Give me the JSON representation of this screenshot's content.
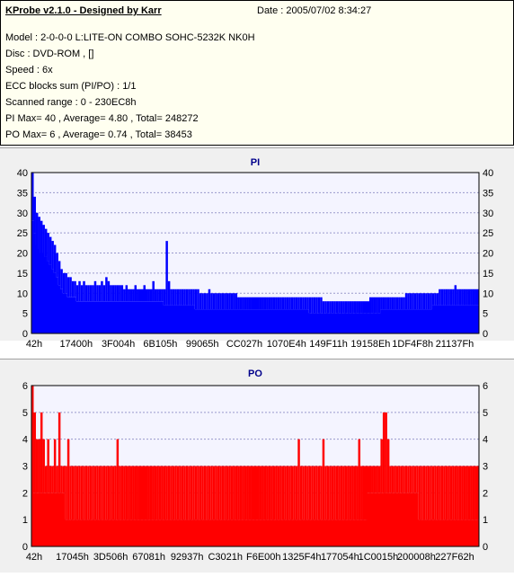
{
  "info": {
    "title": "KProbe v2.1.0 - Designed by Karr",
    "date": "Date : 2005/07/02 8:34:27",
    "model": "Model : 2-0-0-0 L:LITE-ON COMBO SOHC-5232K NK0H",
    "disc": "Disc : DVD-ROM ,  []",
    "speed": "Speed : 6x",
    "ecc": "ECC blocks sum (PI/PO) : 1/1",
    "range": "Scanned range : 0 - 230EC8h",
    "pi_stats": "PI Max= 40 , Average= 4.80 , Total= 248272",
    "po_stats": "PO Max= 6 , Average= 0.74 , Total= 38453"
  },
  "colors": {
    "pi": "#0000ff",
    "po": "#ff0000",
    "plot_bg": "#f4f4ff",
    "grid": "#9999cc",
    "title": "#00008b"
  },
  "chart_data": [
    {
      "type": "area",
      "title": "PI",
      "ylim": [
        0,
        40
      ],
      "yticks": [
        0,
        5,
        10,
        15,
        20,
        25,
        30,
        35,
        40
      ],
      "xticks": [
        "42h",
        "17400h",
        "3F004h",
        "6B105h",
        "99065h",
        "CC027h",
        "1070E4h",
        "149F11h",
        "19158Eh",
        "1DF4F8h",
        "21137Fh"
      ],
      "xlim": [
        0,
        1
      ],
      "grid": true,
      "series": [
        {
          "values": [
            40,
            34,
            30,
            29,
            28,
            27,
            26,
            25,
            24,
            23,
            22,
            20,
            18,
            16,
            15,
            15,
            14,
            14,
            13,
            13,
            12,
            13,
            12,
            13,
            12,
            12,
            12,
            12,
            13,
            12,
            12,
            13,
            12,
            14,
            13,
            12,
            12,
            12,
            12,
            12,
            12,
            11,
            12,
            11,
            11,
            11,
            12,
            11,
            11,
            11,
            12,
            11,
            11,
            11,
            13,
            11,
            11,
            11,
            11,
            11,
            23,
            13,
            11,
            11,
            11,
            11,
            11,
            11,
            11,
            11,
            11,
            11,
            11,
            11,
            11,
            10,
            10,
            10,
            10,
            11,
            10,
            10,
            10,
            10,
            10,
            10,
            10,
            10,
            10,
            10,
            10,
            10,
            9,
            9,
            9,
            9,
            9,
            9,
            9,
            9,
            9,
            9,
            9,
            9,
            9,
            9,
            9,
            9,
            9,
            9,
            9,
            9,
            9,
            9,
            9,
            9,
            9,
            9,
            9,
            9,
            9,
            9,
            9,
            9,
            9,
            9,
            9,
            9,
            9,
            9,
            8,
            8,
            8,
            8,
            8,
            8,
            8,
            8,
            8,
            8,
            8,
            8,
            8,
            8,
            8,
            8,
            8,
            8,
            8,
            8,
            8,
            9,
            9,
            9,
            9,
            9,
            9,
            9,
            9,
            9,
            9,
            9,
            9,
            9,
            9,
            9,
            9,
            10,
            10,
            10,
            10,
            10,
            10,
            10,
            10,
            10,
            10,
            10,
            10,
            10,
            10,
            10,
            11,
            11,
            11,
            11,
            11,
            11,
            11,
            12,
            11,
            11,
            11,
            11,
            11,
            11,
            11,
            11,
            11,
            11
          ],
          "baseline": [
            28,
            25,
            22,
            21,
            20,
            20,
            19,
            18,
            17,
            16,
            15,
            14,
            12,
            11,
            10,
            10,
            9,
            9,
            9,
            9,
            8,
            8,
            8,
            8,
            8,
            8,
            8,
            8,
            8,
            8,
            8,
            8,
            8,
            8,
            8,
            8,
            8,
            8,
            8,
            8,
            8,
            8,
            8,
            8,
            8,
            8,
            8,
            8,
            8,
            8,
            8,
            8,
            8,
            8,
            8,
            8,
            8,
            8,
            8,
            7,
            7,
            7,
            7,
            7,
            7,
            7,
            7,
            7,
            7,
            7,
            7,
            7,
            7,
            6,
            6,
            6,
            6,
            6,
            6,
            6,
            6,
            6,
            6,
            6,
            6,
            6,
            6,
            6,
            6,
            6,
            6,
            6,
            6,
            6,
            6,
            6,
            6,
            6,
            6,
            6,
            6,
            6,
            6,
            6,
            6,
            6,
            6,
            6,
            6,
            6,
            6,
            6,
            6,
            6,
            6,
            6,
            6,
            6,
            6,
            6,
            6,
            6,
            6,
            6,
            5,
            5,
            5,
            5,
            5,
            5,
            5,
            5,
            5,
            5,
            5,
            5,
            5,
            5,
            5,
            5,
            5,
            5,
            5,
            5,
            5,
            5,
            5,
            5,
            5,
            5,
            5,
            5,
            5,
            5,
            5,
            5,
            6,
            6,
            6,
            6,
            6,
            6,
            6,
            6,
            6,
            6,
            6,
            6,
            6,
            6,
            6,
            6,
            6,
            6,
            6,
            6,
            6,
            6,
            6,
            7,
            7,
            7,
            7,
            7,
            7,
            7,
            7,
            7,
            7,
            7,
            7,
            7,
            7,
            7,
            7,
            7,
            7,
            7,
            7,
            7
          ]
        }
      ]
    },
    {
      "type": "area",
      "title": "PO",
      "ylim": [
        0,
        6
      ],
      "yticks": [
        0,
        1,
        2,
        3,
        4,
        5,
        6
      ],
      "xticks": [
        "42h",
        "17045h",
        "3D506h",
        "67081h",
        "92937h",
        "C3021h",
        "F6E00h",
        "1325F4h",
        "177054h",
        "1C0015h",
        "200008h",
        "227F62h"
      ],
      "xlim": [
        0,
        1
      ],
      "grid": true,
      "series": [
        {
          "values": [
            6,
            5,
            4,
            4,
            5,
            4,
            3,
            4,
            3,
            3,
            4,
            3,
            5,
            3,
            3,
            3,
            4,
            3,
            3,
            3,
            3,
            3,
            3,
            3,
            3,
            3,
            3,
            3,
            3,
            3,
            3,
            3,
            3,
            3,
            3,
            3,
            3,
            3,
            4,
            3,
            3,
            3,
            3,
            3,
            3,
            3,
            3,
            3,
            3,
            3,
            3,
            3,
            3,
            3,
            3,
            3,
            3,
            3,
            3,
            3,
            3,
            3,
            3,
            3,
            3,
            3,
            3,
            3,
            3,
            3,
            3,
            3,
            3,
            3,
            3,
            3,
            3,
            3,
            3,
            3,
            3,
            3,
            3,
            3,
            3,
            3,
            3,
            3,
            3,
            3,
            3,
            3,
            3,
            3,
            3,
            3,
            3,
            3,
            3,
            3,
            3,
            3,
            3,
            3,
            3,
            3,
            3,
            3,
            3,
            3,
            3,
            3,
            3,
            3,
            3,
            3,
            3,
            3,
            3,
            4,
            3,
            3,
            3,
            3,
            3,
            3,
            3,
            3,
            3,
            3,
            4,
            3,
            3,
            3,
            3,
            3,
            3,
            3,
            3,
            3,
            3,
            3,
            3,
            3,
            3,
            3,
            4,
            3,
            3,
            3,
            3,
            3,
            3,
            3,
            3,
            3,
            4,
            5,
            5,
            4,
            3,
            3,
            3,
            3,
            3,
            3,
            3,
            3,
            3,
            3,
            3,
            3,
            3,
            3,
            3,
            3,
            3,
            3,
            3,
            3,
            3,
            3,
            3,
            3,
            3,
            3,
            3,
            3,
            3,
            3,
            3,
            3,
            3,
            3,
            3,
            3,
            3,
            3,
            3,
            3
          ],
          "baseline": [
            2,
            2,
            2,
            2,
            2,
            2,
            2,
            2,
            2,
            2,
            2,
            2,
            2,
            2,
            2,
            1,
            1,
            1,
            1,
            1,
            1,
            1,
            1,
            1,
            1,
            1,
            1,
            1,
            1,
            1,
            1,
            1,
            1,
            1,
            1,
            1,
            1,
            1,
            1,
            1,
            1,
            1,
            1,
            1,
            1,
            1,
            1,
            1,
            1,
            1,
            1,
            1,
            1,
            1,
            1,
            1,
            1,
            1,
            1,
            1,
            1,
            1,
            1,
            1,
            1,
            1,
            1,
            1,
            1,
            1,
            1,
            1,
            1,
            1,
            1,
            1,
            1,
            1,
            1,
            1,
            1,
            1,
            1,
            1,
            1,
            1,
            1,
            1,
            1,
            1,
            1,
            1,
            1,
            1,
            1,
            1,
            1,
            1,
            1,
            1,
            1,
            1,
            1,
            1,
            1,
            1,
            1,
            1,
            1,
            1,
            1,
            1,
            1,
            1,
            1,
            1,
            1,
            1,
            1,
            1,
            1,
            1,
            1,
            1,
            1,
            1,
            1,
            1,
            1,
            1,
            1,
            1,
            1,
            1,
            1,
            1,
            1,
            1,
            1,
            1,
            1,
            1,
            1,
            1,
            1,
            1,
            1,
            1,
            1,
            1,
            2,
            2,
            2,
            2,
            2,
            2,
            2,
            2,
            2,
            2,
            2,
            2,
            2,
            2,
            2,
            2,
            2,
            2,
            2,
            2,
            2,
            2,
            2,
            1,
            1,
            1,
            1,
            1,
            1,
            1,
            1,
            1,
            1,
            1,
            1,
            1,
            1,
            1,
            1,
            1,
            1,
            1,
            1,
            1,
            1,
            1,
            1,
            1,
            1,
            1
          ]
        }
      ]
    }
  ]
}
